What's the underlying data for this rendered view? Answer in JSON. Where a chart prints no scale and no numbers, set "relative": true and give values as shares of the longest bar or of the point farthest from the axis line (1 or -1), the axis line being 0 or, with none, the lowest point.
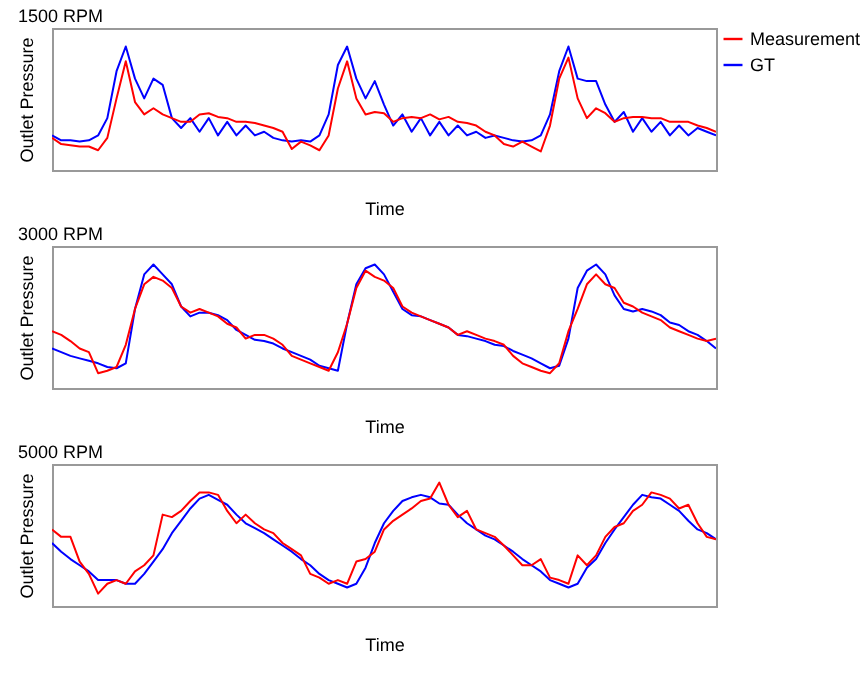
{
  "chart_data": [
    {
      "type": "line",
      "title": "1500 RPM",
      "xlabel": "Time",
      "ylabel": "Outlet Pressure",
      "relative": true,
      "tick_labels": false,
      "legend": "right",
      "line_style": "solid",
      "categories": [
        null,
        null,
        null,
        null,
        null,
        null,
        null,
        null,
        null,
        null,
        null,
        null,
        null,
        null,
        null,
        null,
        null,
        null,
        null,
        null,
        null,
        null,
        null,
        null,
        null,
        null,
        null,
        null,
        null,
        null,
        null,
        null,
        null,
        null,
        null,
        null,
        null,
        null,
        null,
        null,
        null,
        null,
        null,
        null,
        null,
        null,
        null,
        null,
        null,
        null,
        null,
        null,
        null,
        null,
        null,
        null,
        null,
        null,
        null,
        null,
        null,
        null,
        null,
        null,
        null,
        null,
        null,
        null,
        null,
        null,
        null,
        null,
        null
      ],
      "series": [
        {
          "name": "Measurement",
          "color": "#ff0000",
          "values": [
            0.26,
            0.21,
            0.2,
            0.19,
            0.19,
            0.16,
            0.26,
            0.58,
            0.88,
            0.55,
            0.45,
            0.5,
            0.45,
            0.42,
            0.39,
            0.39,
            0.45,
            0.46,
            0.43,
            0.42,
            0.39,
            0.39,
            0.38,
            0.36,
            0.34,
            0.31,
            0.17,
            0.23,
            0.2,
            0.16,
            0.28,
            0.66,
            0.88,
            0.58,
            0.45,
            0.47,
            0.46,
            0.39,
            0.42,
            0.43,
            0.42,
            0.45,
            0.41,
            0.43,
            0.39,
            0.38,
            0.36,
            0.31,
            0.28,
            0.21,
            0.19,
            0.23,
            0.19,
            0.15,
            0.36,
            0.74,
            0.91,
            0.58,
            0.42,
            0.5,
            0.46,
            0.39,
            0.42,
            0.43,
            0.43,
            0.42,
            0.42,
            0.39,
            0.39,
            0.39,
            0.36,
            0.34,
            0.31
          ]
        },
        {
          "name": "GT",
          "color": "#0000ff",
          "values": [
            0.28,
            0.24,
            0.24,
            0.23,
            0.24,
            0.28,
            0.42,
            0.8,
            1.0,
            0.74,
            0.58,
            0.74,
            0.69,
            0.42,
            0.34,
            0.42,
            0.31,
            0.42,
            0.28,
            0.39,
            0.28,
            0.36,
            0.28,
            0.31,
            0.26,
            0.24,
            0.23,
            0.24,
            0.23,
            0.28,
            0.45,
            0.85,
            1.0,
            0.74,
            0.58,
            0.72,
            0.53,
            0.36,
            0.45,
            0.31,
            0.42,
            0.28,
            0.39,
            0.28,
            0.36,
            0.28,
            0.31,
            0.26,
            0.28,
            0.26,
            0.24,
            0.23,
            0.24,
            0.28,
            0.45,
            0.8,
            1.0,
            0.74,
            0.72,
            0.72,
            0.53,
            0.39,
            0.47,
            0.31,
            0.42,
            0.31,
            0.39,
            0.28,
            0.36,
            0.28,
            0.34,
            0.31,
            0.28
          ]
        }
      ]
    },
    {
      "type": "line",
      "title": "3000 RPM",
      "xlabel": "Time",
      "ylabel": "Outlet Pressure",
      "relative": true,
      "tick_labels": false,
      "legend": "right",
      "line_style": "solid",
      "categories": [
        null,
        null,
        null,
        null,
        null,
        null,
        null,
        null,
        null,
        null,
        null,
        null,
        null,
        null,
        null,
        null,
        null,
        null,
        null,
        null,
        null,
        null,
        null,
        null,
        null,
        null,
        null,
        null,
        null,
        null,
        null,
        null,
        null,
        null,
        null,
        null,
        null,
        null,
        null,
        null,
        null,
        null,
        null,
        null,
        null,
        null,
        null,
        null,
        null,
        null,
        null,
        null,
        null,
        null,
        null,
        null,
        null,
        null,
        null,
        null,
        null,
        null,
        null,
        null,
        null,
        null,
        null,
        null,
        null,
        null,
        null,
        null,
        null
      ],
      "series": [
        {
          "name": "Measurement",
          "color": "#ff0000",
          "values": [
            0.46,
            0.43,
            0.38,
            0.32,
            0.29,
            0.12,
            0.14,
            0.17,
            0.35,
            0.64,
            0.84,
            0.9,
            0.87,
            0.81,
            0.66,
            0.61,
            0.64,
            0.61,
            0.58,
            0.52,
            0.49,
            0.4,
            0.43,
            0.43,
            0.4,
            0.35,
            0.26,
            0.23,
            0.2,
            0.17,
            0.14,
            0.29,
            0.52,
            0.81,
            0.95,
            0.9,
            0.87,
            0.81,
            0.66,
            0.61,
            0.58,
            0.55,
            0.52,
            0.49,
            0.43,
            0.46,
            0.43,
            0.4,
            0.38,
            0.35,
            0.26,
            0.2,
            0.17,
            0.14,
            0.12,
            0.2,
            0.46,
            0.64,
            0.84,
            0.92,
            0.84,
            0.81,
            0.69,
            0.66,
            0.61,
            0.58,
            0.55,
            0.49,
            0.46,
            0.43,
            0.4,
            0.38,
            0.4
          ]
        },
        {
          "name": "GT",
          "color": "#0000ff",
          "values": [
            0.32,
            0.29,
            0.26,
            0.24,
            0.22,
            0.2,
            0.17,
            0.16,
            0.2,
            0.64,
            0.92,
            1.0,
            0.92,
            0.84,
            0.66,
            0.58,
            0.61,
            0.61,
            0.59,
            0.55,
            0.47,
            0.43,
            0.39,
            0.38,
            0.36,
            0.32,
            0.29,
            0.26,
            0.23,
            0.18,
            0.16,
            0.14,
            0.52,
            0.84,
            0.97,
            1.0,
            0.92,
            0.78,
            0.64,
            0.59,
            0.58,
            0.55,
            0.52,
            0.49,
            0.43,
            0.42,
            0.4,
            0.38,
            0.35,
            0.34,
            0.3,
            0.27,
            0.24,
            0.2,
            0.16,
            0.18,
            0.4,
            0.81,
            0.95,
            1.0,
            0.92,
            0.75,
            0.64,
            0.62,
            0.64,
            0.62,
            0.59,
            0.53,
            0.51,
            0.46,
            0.43,
            0.38,
            0.32
          ]
        }
      ]
    },
    {
      "type": "line",
      "title": "5000 RPM",
      "xlabel": "Time",
      "ylabel": "Outlet Pressure",
      "relative": true,
      "tick_labels": false,
      "legend": "right",
      "line_style": "solid",
      "categories": [
        null,
        null,
        null,
        null,
        null,
        null,
        null,
        null,
        null,
        null,
        null,
        null,
        null,
        null,
        null,
        null,
        null,
        null,
        null,
        null,
        null,
        null,
        null,
        null,
        null,
        null,
        null,
        null,
        null,
        null,
        null,
        null,
        null,
        null,
        null,
        null,
        null,
        null,
        null,
        null,
        null,
        null,
        null,
        null,
        null,
        null,
        null,
        null,
        null,
        null,
        null,
        null,
        null,
        null,
        null,
        null,
        null,
        null,
        null,
        null,
        null,
        null,
        null,
        null,
        null,
        null,
        null,
        null,
        null,
        null,
        null,
        null,
        null
      ],
      "series": [
        {
          "name": "Measurement",
          "color": "#ff0000",
          "values": [
            0.62,
            0.56,
            0.56,
            0.36,
            0.26,
            0.1,
            0.18,
            0.21,
            0.18,
            0.28,
            0.33,
            0.41,
            0.74,
            0.72,
            0.77,
            0.85,
            0.92,
            0.92,
            0.9,
            0.77,
            0.67,
            0.74,
            0.67,
            0.62,
            0.59,
            0.51,
            0.46,
            0.41,
            0.26,
            0.23,
            0.18,
            0.21,
            0.18,
            0.36,
            0.38,
            0.44,
            0.62,
            0.69,
            0.74,
            0.79,
            0.85,
            0.87,
            1.0,
            0.82,
            0.72,
            0.77,
            0.62,
            0.59,
            0.56,
            0.49,
            0.41,
            0.33,
            0.33,
            0.38,
            0.23,
            0.21,
            0.18,
            0.41,
            0.33,
            0.41,
            0.56,
            0.64,
            0.67,
            0.77,
            0.82,
            0.92,
            0.9,
            0.87,
            0.79,
            0.82,
            0.67,
            0.56,
            0.54
          ]
        },
        {
          "name": "GT",
          "color": "#0000ff",
          "values": [
            0.51,
            0.44,
            0.38,
            0.33,
            0.28,
            0.21,
            0.21,
            0.21,
            0.18,
            0.18,
            0.26,
            0.36,
            0.46,
            0.59,
            0.69,
            0.79,
            0.87,
            0.9,
            0.86,
            0.82,
            0.74,
            0.67,
            0.63,
            0.59,
            0.54,
            0.49,
            0.44,
            0.38,
            0.33,
            0.26,
            0.21,
            0.18,
            0.15,
            0.18,
            0.31,
            0.51,
            0.67,
            0.77,
            0.85,
            0.88,
            0.9,
            0.88,
            0.83,
            0.82,
            0.74,
            0.67,
            0.62,
            0.57,
            0.54,
            0.49,
            0.44,
            0.38,
            0.33,
            0.28,
            0.21,
            0.18,
            0.15,
            0.18,
            0.31,
            0.38,
            0.51,
            0.62,
            0.72,
            0.82,
            0.9,
            0.88,
            0.87,
            0.82,
            0.77,
            0.69,
            0.62,
            0.59,
            0.54
          ]
        }
      ]
    }
  ]
}
